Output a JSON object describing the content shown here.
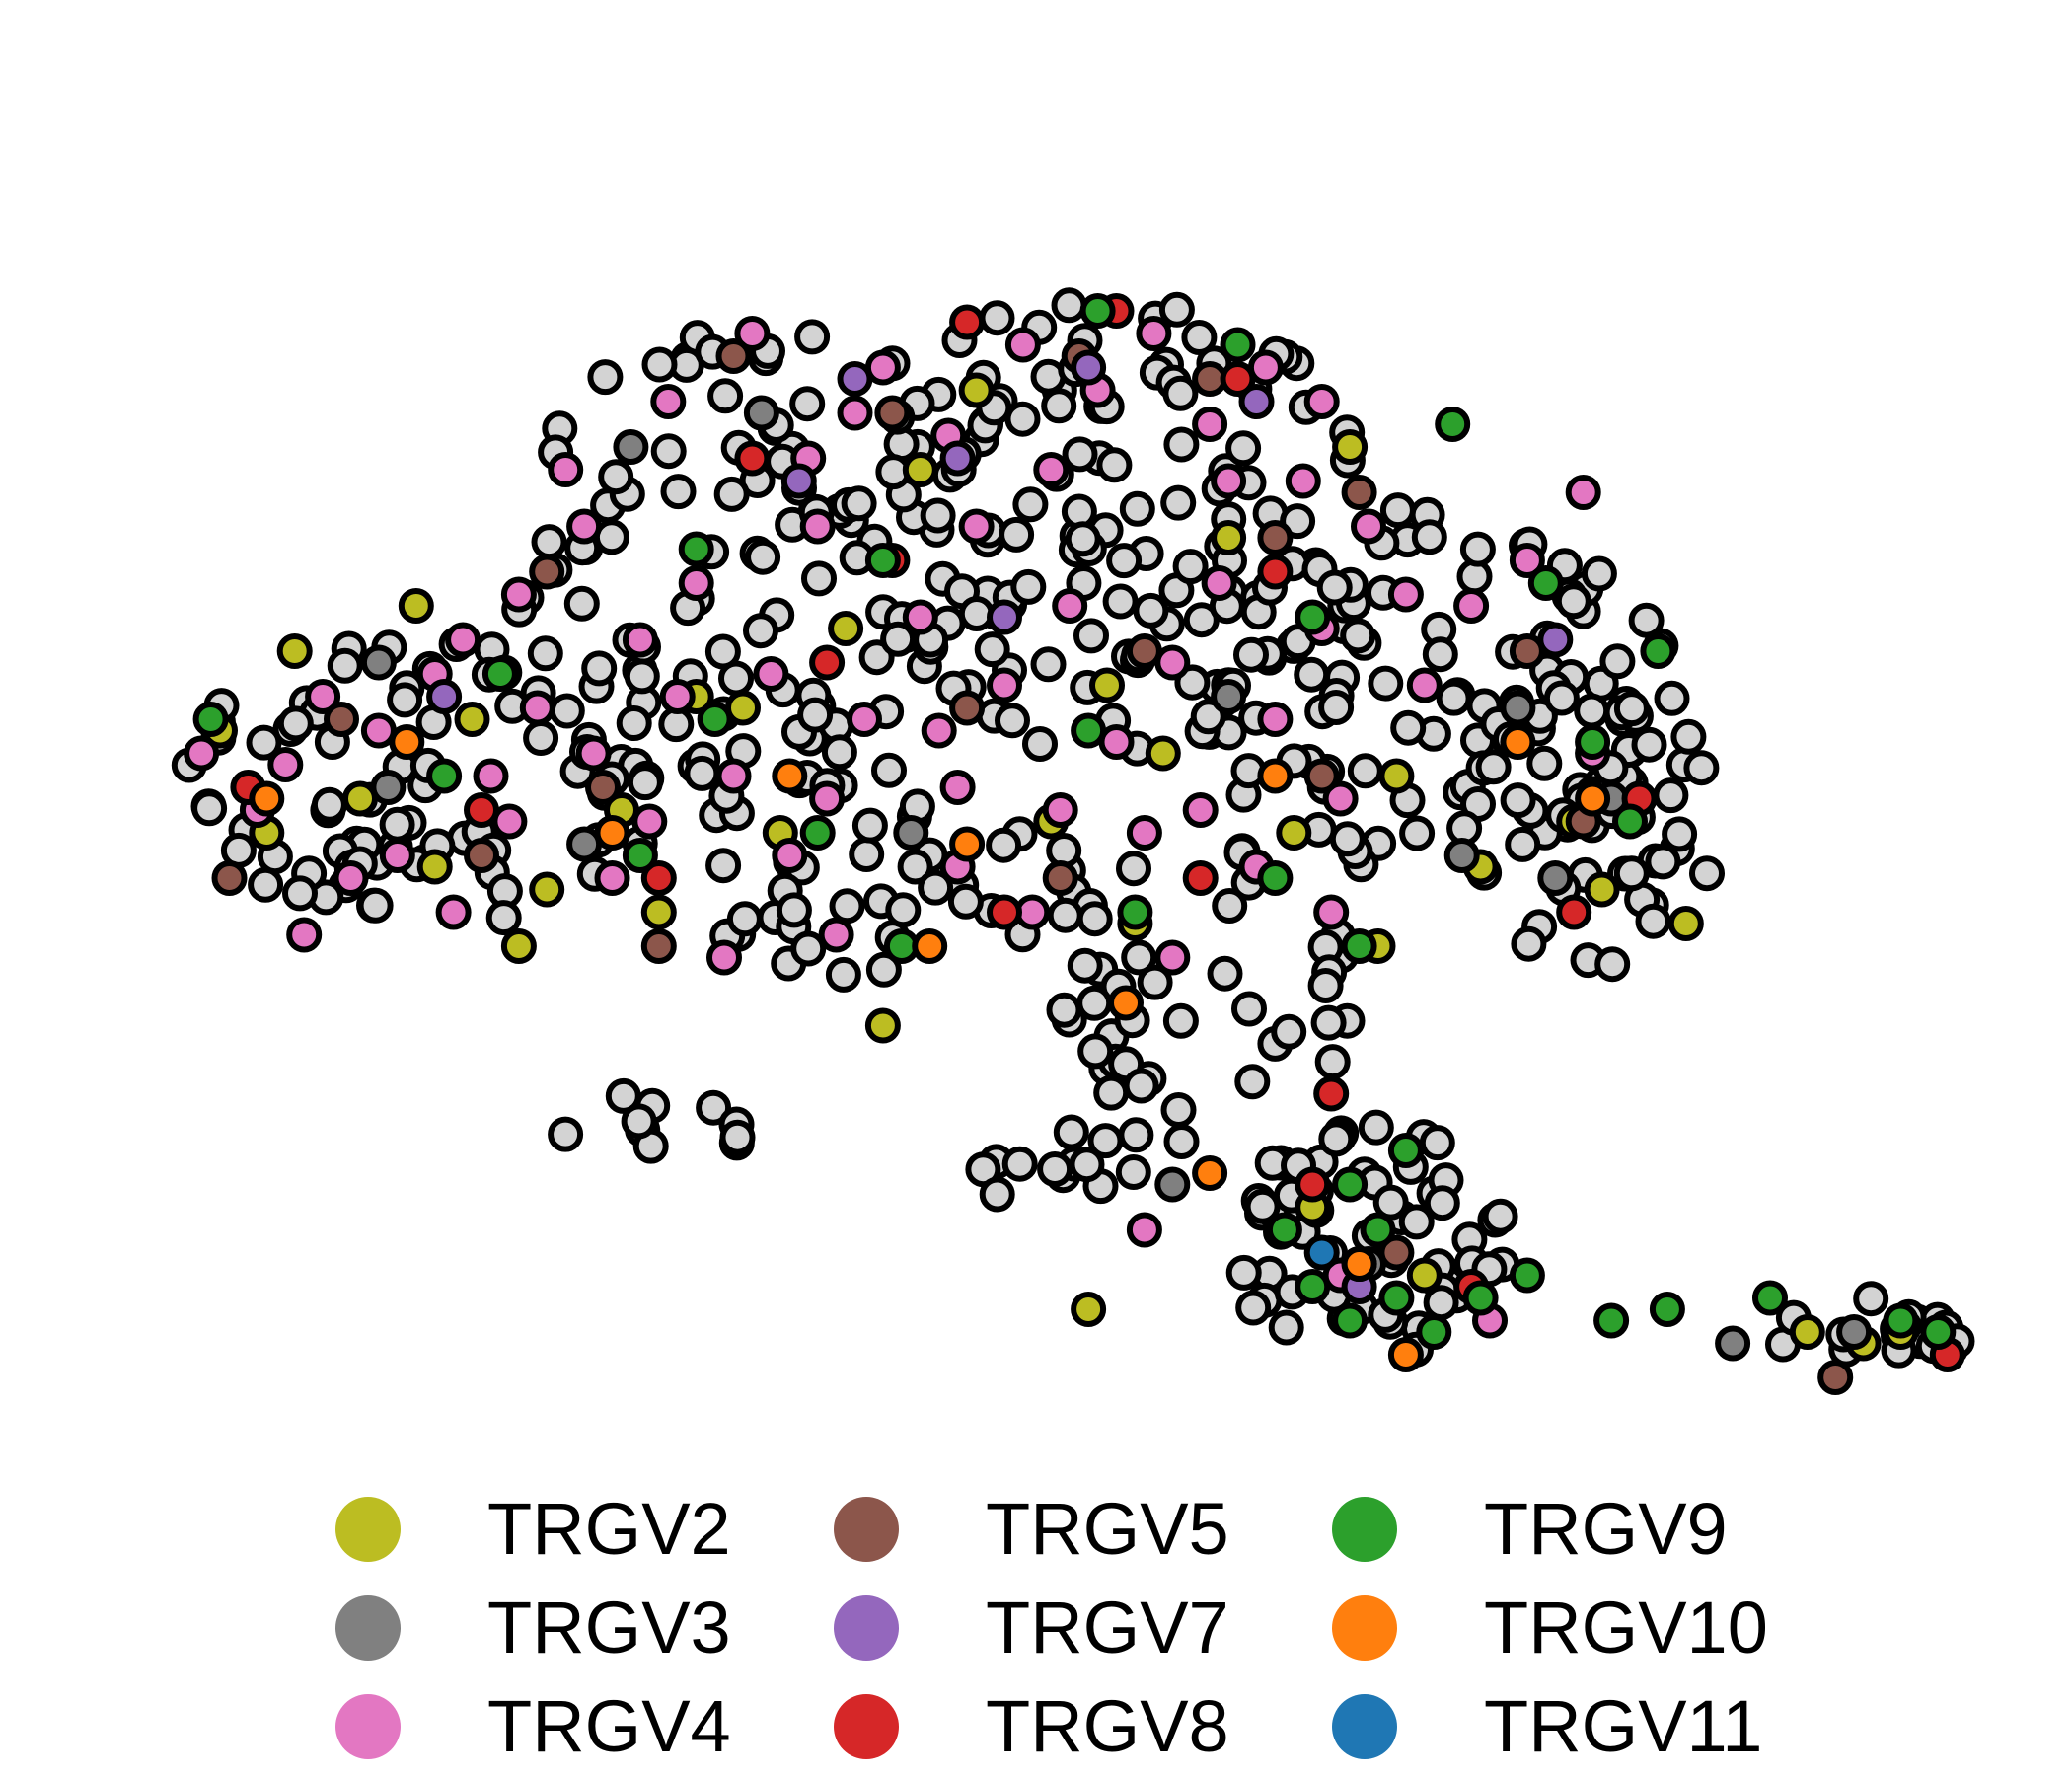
{
  "chart_data": {
    "type": "scatter",
    "title": "",
    "xlabel": "",
    "ylabel": "",
    "axes_visible": false,
    "grid": false,
    "legend_position": "bottom",
    "unlabeled_color": "#d3d3d3",
    "point_outline": "#000000",
    "series": [
      {
        "name": "TRGV2",
        "color": "#bcbd22",
        "points": [
          [
            -8.7,
            3.8
          ],
          [
            -7.9,
            4.5
          ],
          [
            -6.6,
            4.9
          ],
          [
            -5.2,
            2.4
          ],
          [
            -3.1,
            4.0
          ],
          [
            -2.0,
            4.7
          ],
          [
            0.8,
            4.2
          ],
          [
            1.4,
            3.6
          ],
          [
            -7.2,
            3.2
          ],
          [
            -4.4,
            3.1
          ],
          [
            -2.7,
            2.9
          ],
          [
            0.2,
            3.0
          ],
          [
            2.8,
            2.9
          ],
          [
            3.9,
            3.4
          ],
          [
            -6.0,
            3.9
          ],
          [
            -1.2,
            6.1
          ],
          [
            2.1,
            5.5
          ],
          [
            -0.6,
            6.8
          ],
          [
            3.4,
            6.3
          ],
          [
            -5.5,
            1.9
          ],
          [
            -4.0,
            2.2
          ],
          [
            5.8,
            3.0
          ],
          [
            -1.6,
            1.2
          ],
          [
            3.0,
            -0.4
          ],
          [
            4.2,
            -1.0
          ],
          [
            0.6,
            -1.3
          ],
          [
            8.3,
            -1.5
          ],
          [
            8.9,
            -1.6
          ],
          [
            9.3,
            -1.5
          ],
          [
            4.8,
            2.6
          ],
          [
            -6.4,
            2.6
          ],
          [
            -8.2,
            2.9
          ],
          [
            -3.6,
            4.1
          ],
          [
            1.1,
            2.1
          ],
          [
            3.7,
            1.9
          ],
          [
            6.1,
            2.4
          ],
          [
            7.0,
            2.1
          ]
        ]
      },
      {
        "name": "TRGV3",
        "color": "#808080",
        "points": [
          [
            -2.9,
            6.6
          ],
          [
            -4.3,
            6.3
          ],
          [
            -7.0,
            4.4
          ],
          [
            1.5,
            -0.2
          ],
          [
            5.6,
            2.5
          ],
          [
            6.2,
            3.2
          ],
          [
            8.8,
            -1.5
          ],
          [
            -1.3,
            2.9
          ],
          [
            2.1,
            4.1
          ],
          [
            3.6,
            -0.9
          ],
          [
            -6.9,
            3.3
          ],
          [
            5.2,
            4.0
          ],
          [
            7.5,
            -1.6
          ],
          [
            4.6,
            2.7
          ],
          [
            -4.8,
            2.8
          ]
        ]
      },
      {
        "name": "TRGV4",
        "color": "#e377c2",
        "points": [
          [
            -8.9,
            3.6
          ],
          [
            -8.3,
            3.1
          ],
          [
            -7.6,
            4.1
          ],
          [
            -7.0,
            3.8
          ],
          [
            -6.4,
            4.3
          ],
          [
            -6.8,
            2.7
          ],
          [
            -5.8,
            3.4
          ],
          [
            -5.3,
            4.0
          ],
          [
            -4.7,
            3.6
          ],
          [
            -4.2,
            4.6
          ],
          [
            -3.6,
            5.1
          ],
          [
            -3.2,
            3.4
          ],
          [
            -2.8,
            4.3
          ],
          [
            -2.3,
            5.6
          ],
          [
            -1.8,
            3.9
          ],
          [
            -1.2,
            4.8
          ],
          [
            -0.8,
            3.3
          ],
          [
            -0.3,
            4.2
          ],
          [
            0.4,
            4.9
          ],
          [
            0.9,
            3.7
          ],
          [
            1.5,
            4.4
          ],
          [
            2.0,
            5.1
          ],
          [
            2.6,
            3.9
          ],
          [
            3.1,
            4.7
          ],
          [
            3.6,
            5.6
          ],
          [
            4.2,
            4.2
          ],
          [
            -3.9,
            6.7
          ],
          [
            -3.0,
            7.3
          ],
          [
            -2.4,
            6.2
          ],
          [
            -1.6,
            7.0
          ],
          [
            -0.9,
            6.4
          ],
          [
            -0.1,
            7.2
          ],
          [
            0.7,
            6.8
          ],
          [
            1.3,
            7.3
          ],
          [
            1.9,
            6.5
          ],
          [
            2.5,
            7.0
          ],
          [
            3.1,
            6.7
          ],
          [
            -4.8,
            5.6
          ],
          [
            -5.5,
            5.0
          ],
          [
            -6.1,
            4.6
          ],
          [
            -4.1,
            3.0
          ],
          [
            -2.6,
            2.7
          ],
          [
            -0.8,
            2.6
          ],
          [
            1.2,
            2.9
          ],
          [
            2.4,
            2.6
          ],
          [
            3.3,
            3.2
          ],
          [
            -3.3,
            1.8
          ],
          [
            -2.1,
            2.0
          ],
          [
            -1.0,
            3.8
          ],
          [
            0.3,
            3.1
          ],
          [
            4.7,
            4.9
          ],
          [
            5.3,
            5.3
          ],
          [
            5.9,
            5.9
          ],
          [
            2.9,
            6.0
          ],
          [
            -6.2,
            2.2
          ],
          [
            -7.3,
            2.5
          ],
          [
            -5.0,
            6.1
          ],
          [
            1.2,
            -0.6
          ],
          [
            3.3,
            -1.0
          ],
          [
            4.9,
            -1.4
          ],
          [
            -1.9,
            6.6
          ],
          [
            0.2,
            6.1
          ],
          [
            2.1,
            6.0
          ],
          [
            -3.8,
            4.1
          ],
          [
            -0.6,
            5.6
          ],
          [
            1.8,
            3.1
          ],
          [
            4.0,
            5.0
          ],
          [
            6.0,
            3.6
          ],
          [
            -8.0,
            3.5
          ],
          [
            -4.5,
            2.5
          ],
          [
            -2.2,
            3.2
          ],
          [
            3.2,
            2.2
          ],
          [
            1.5,
            1.8
          ],
          [
            0.0,
            2.2
          ],
          [
            -5.6,
            3.0
          ],
          [
            -7.8,
            2.0
          ]
        ]
      },
      {
        "name": "TRGV5",
        "color": "#8c564b",
        "points": [
          [
            -8.6,
            2.5
          ],
          [
            -7.4,
            3.9
          ],
          [
            -5.2,
            5.2
          ],
          [
            -3.2,
            7.1
          ],
          [
            -1.5,
            6.6
          ],
          [
            0.5,
            7.1
          ],
          [
            1.9,
            6.9
          ],
          [
            2.6,
            5.5
          ],
          [
            3.5,
            5.9
          ],
          [
            -4.6,
            3.3
          ],
          [
            -0.7,
            4.0
          ],
          [
            1.2,
            4.5
          ],
          [
            3.1,
            3.4
          ],
          [
            -4.0,
            1.9
          ],
          [
            5.3,
            4.5
          ],
          [
            5.9,
            3.0
          ],
          [
            0.3,
            2.5
          ],
          [
            3.9,
            -0.8
          ],
          [
            8.6,
            -1.9
          ],
          [
            -5.9,
            2.7
          ]
        ]
      },
      {
        "name": "TRGV7",
        "color": "#9467bd",
        "points": [
          [
            -1.9,
            6.9
          ],
          [
            -0.8,
            6.2
          ],
          [
            0.6,
            7.0
          ],
          [
            2.4,
            6.7
          ],
          [
            -0.3,
            4.8
          ],
          [
            -2.5,
            6.0
          ],
          [
            5.6,
            4.6
          ],
          [
            3.5,
            -1.1
          ],
          [
            -6.3,
            4.1
          ]
        ]
      },
      {
        "name": "TRGV8",
        "color": "#d62728",
        "points": [
          [
            -0.7,
            7.4
          ],
          [
            0.9,
            7.5
          ],
          [
            2.2,
            6.9
          ],
          [
            -3.0,
            6.2
          ],
          [
            -1.5,
            5.3
          ],
          [
            -2.2,
            4.4
          ],
          [
            -5.9,
            3.1
          ],
          [
            -8.4,
            3.3
          ],
          [
            -0.3,
            2.2
          ],
          [
            1.8,
            2.5
          ],
          [
            3.2,
            0.6
          ],
          [
            3.0,
            -0.2
          ],
          [
            3.5,
            -0.9
          ],
          [
            4.7,
            -1.1
          ],
          [
            9.8,
            -1.7
          ],
          [
            6.5,
            3.2
          ],
          [
            5.8,
            2.2
          ],
          [
            -4.0,
            2.5
          ],
          [
            2.6,
            5.2
          ]
        ]
      },
      {
        "name": "TRGV9",
        "color": "#2ca02c",
        "points": [
          [
            -8.8,
            3.9
          ],
          [
            -6.3,
            3.4
          ],
          [
            -3.6,
            5.4
          ],
          [
            -1.6,
            5.3
          ],
          [
            0.7,
            7.5
          ],
          [
            2.2,
            7.2
          ],
          [
            4.5,
            6.5
          ],
          [
            5.5,
            5.1
          ],
          [
            6.7,
            4.5
          ],
          [
            6.0,
            3.7
          ],
          [
            6.4,
            3.0
          ],
          [
            -4.2,
            2.7
          ],
          [
            -2.3,
            2.9
          ],
          [
            0.6,
            3.8
          ],
          [
            3.0,
            4.8
          ],
          [
            1.1,
            2.2
          ],
          [
            2.6,
            2.5
          ],
          [
            3.5,
            1.9
          ],
          [
            3.4,
            -0.2
          ],
          [
            2.7,
            -0.6
          ],
          [
            3.0,
            -1.1
          ],
          [
            3.4,
            -1.4
          ],
          [
            3.9,
            -1.2
          ],
          [
            4.3,
            -1.5
          ],
          [
            4.8,
            -1.2
          ],
          [
            5.3,
            -1.0
          ],
          [
            6.2,
            -1.4
          ],
          [
            6.8,
            -1.3
          ],
          [
            7.9,
            -1.2
          ],
          [
            9.3,
            -1.4
          ],
          [
            9.7,
            -1.5
          ],
          [
            4.0,
            0.1
          ],
          [
            3.7,
            -0.6
          ],
          [
            -3.4,
            3.9
          ],
          [
            -5.7,
            4.3
          ],
          [
            -1.4,
            1.9
          ]
        ]
      },
      {
        "name": "TRGV10",
        "color": "#ff7f0e",
        "points": [
          [
            -6.7,
            3.7
          ],
          [
            -8.2,
            3.2
          ],
          [
            -4.5,
            2.9
          ],
          [
            -0.7,
            2.8
          ],
          [
            2.6,
            3.4
          ],
          [
            5.2,
            3.7
          ],
          [
            6.0,
            3.2
          ],
          [
            1.0,
            1.4
          ],
          [
            -1.1,
            1.9
          ],
          [
            3.5,
            -0.9
          ],
          [
            4.0,
            -1.7
          ],
          [
            -2.6,
            3.4
          ],
          [
            1.9,
            -0.1
          ]
        ]
      },
      {
        "name": "TRGV11",
        "color": "#1f77b4",
        "points": [
          [
            3.1,
            -0.8
          ]
        ]
      }
    ]
  },
  "legend": [
    {
      "label": "TRGV2",
      "color": "#bcbd22"
    },
    {
      "label": "TRGV3",
      "color": "#808080"
    },
    {
      "label": "TRGV4",
      "color": "#e377c2"
    },
    {
      "label": "TRGV5",
      "color": "#8c564b"
    },
    {
      "label": "TRGV7",
      "color": "#9467bd"
    },
    {
      "label": "TRGV8",
      "color": "#d62728"
    },
    {
      "label": "TRGV9",
      "color": "#2ca02c"
    },
    {
      "label": "TRGV10",
      "color": "#ff7f0e"
    },
    {
      "label": "TRGV11",
      "color": "#1f77b4"
    }
  ]
}
